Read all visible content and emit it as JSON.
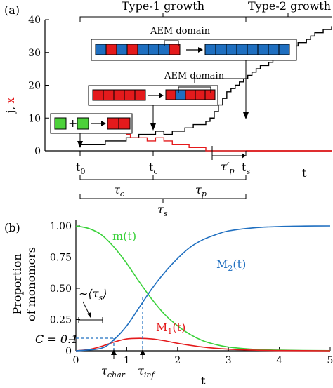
{
  "panel_a": {
    "panel_label": "(a)",
    "ylabel_j": "j,",
    "ylabel_x": "x",
    "type1_label": "Type-1 growth",
    "type2_label": "Type-2 growth",
    "aem_label_1": "AEM domain",
    "aem_label_2": "AEM domain",
    "xlabel": "t",
    "tick_t0": "t",
    "tick_t0_sub": "0",
    "tick_tc": "t",
    "tick_tc_sub": "c",
    "tick_ts": "t",
    "tick_ts_sub": "s",
    "tau_p_prime": "τ′",
    "tau_p_prime_sub": "p",
    "tau_c": "τ",
    "tau_c_sub": "c",
    "tau_p": "τ",
    "tau_p_sub": "p",
    "tau_s": "τ",
    "tau_s_sub": "s",
    "colors": {
      "j": "#000000",
      "x": "#e41a1c",
      "blue_monomer": "#1f6fc0",
      "red_monomer": "#e41a1c",
      "green_monomer": "#4cd13a"
    }
  },
  "panel_b": {
    "panel_label": "(b)",
    "ylabel_line1": "Proportion",
    "ylabel_line2": "of monomers",
    "xlabel": "t",
    "label_m": "m(t)",
    "label_M2": "M",
    "label_M2_sub": "2",
    "label_M2_arg": "(t)",
    "label_M1": "M",
    "label_M1_sub": "1",
    "label_M1_arg": "(t)",
    "c_label": "C = 0.1",
    "ts_label": "∼⟨τ",
    "ts_label_sub": "s",
    "ts_label_end": "⟩",
    "tchar": "τ",
    "tchar_sub": "char",
    "tinf": "τ",
    "tinf_sub": "inf",
    "colors": {
      "m": "#3ad13a",
      "M1": "#e41a1c",
      "M2": "#1f6fc0",
      "guide": "#1f6fc0"
    }
  },
  "chart_data": [
    {
      "type": "line",
      "panel": "a",
      "xlabel": "t",
      "ylabel": "j, x",
      "ylim": [
        0,
        40
      ],
      "yticks": [
        0,
        10,
        20,
        30,
        40
      ],
      "x_markers": [
        "t0",
        "tc",
        "ts"
      ],
      "series": [
        {
          "name": "j",
          "color": "#000000",
          "x": [
            0.0,
            0.1,
            0.2,
            0.3,
            0.4,
            0.5,
            0.55,
            0.6,
            0.7,
            0.8,
            0.9,
            1.0,
            1.1,
            1.2,
            1.25,
            1.3,
            1.35,
            1.4,
            1.45,
            1.5,
            1.55,
            1.6,
            1.65,
            1.7,
            1.75,
            1.8,
            1.85,
            1.9,
            1.95,
            2.0,
            2.05,
            2.1,
            2.15,
            2.2,
            2.25,
            2.3,
            2.35,
            2.4,
            2.45,
            2.5,
            2.55,
            2.6,
            2.65,
            2.7,
            2.75,
            2.8,
            2.85,
            2.9,
            2.95,
            3.0
          ],
          "values": [
            2,
            2,
            2,
            3,
            3,
            3,
            4,
            4,
            5,
            5,
            6,
            5,
            6,
            6,
            7,
            7,
            8,
            8,
            8,
            9,
            10,
            12,
            14,
            16,
            18,
            19,
            20,
            21,
            22,
            23,
            24,
            25,
            26,
            26,
            27,
            28,
            29,
            30,
            30,
            31,
            32,
            33,
            33,
            34,
            35,
            36,
            36,
            37,
            37,
            38
          ]
        },
        {
          "name": "x",
          "color": "#e41a1c",
          "x": [
            0.55,
            0.6,
            0.7,
            0.8,
            0.9,
            1.0,
            1.1,
            1.2,
            1.3,
            1.4,
            1.5,
            3.0
          ],
          "values": [
            5,
            4,
            4,
            3,
            4,
            3,
            2,
            2,
            1,
            1,
            0,
            0
          ]
        }
      ]
    },
    {
      "type": "line",
      "panel": "b",
      "xlabel": "t",
      "ylabel": "Proportion of monomers",
      "xlim": [
        0,
        5
      ],
      "ylim": [
        0,
        1
      ],
      "xticks": [
        0,
        1,
        2,
        3,
        4,
        5
      ],
      "yticks": [
        0,
        0.25,
        0.5,
        0.75,
        1.0
      ],
      "ytick_labels": [
        "0",
        "0.25",
        "0.50",
        "0.75",
        "1.00"
      ],
      "series": [
        {
          "name": "m(t)",
          "color": "#3ad13a",
          "x": [
            0,
            0.25,
            0.5,
            0.75,
            1.0,
            1.25,
            1.5,
            1.75,
            2.0,
            2.25,
            2.5,
            2.75,
            3.0,
            3.5,
            4.0,
            5.0
          ],
          "values": [
            1.0,
            0.98,
            0.93,
            0.83,
            0.7,
            0.55,
            0.41,
            0.29,
            0.2,
            0.13,
            0.08,
            0.05,
            0.03,
            0.012,
            0.005,
            0.001
          ]
        },
        {
          "name": "M1(t)",
          "color": "#e41a1c",
          "x": [
            0,
            0.25,
            0.5,
            0.75,
            1.0,
            1.25,
            1.5,
            1.75,
            2.0,
            2.5,
            3.0,
            3.5,
            4.0,
            5.0
          ],
          "values": [
            0,
            0.01,
            0.035,
            0.07,
            0.095,
            0.1,
            0.095,
            0.08,
            0.06,
            0.03,
            0.013,
            0.005,
            0.002,
            0.0
          ]
        },
        {
          "name": "M2(t)",
          "color": "#1f6fc0",
          "x": [
            0,
            0.5,
            0.75,
            1.0,
            1.25,
            1.5,
            1.75,
            2.0,
            2.25,
            2.5,
            2.75,
            3.0,
            3.5,
            4.0,
            4.5,
            5.0
          ],
          "values": [
            0,
            0.02,
            0.09,
            0.2,
            0.35,
            0.5,
            0.63,
            0.74,
            0.83,
            0.89,
            0.93,
            0.96,
            0.985,
            0.995,
            0.999,
            1.0
          ]
        }
      ],
      "annotations": [
        {
          "label": "C = 0.1",
          "y": 0.1
        },
        {
          "label": "τchar",
          "x": 0.75
        },
        {
          "label": "τinf",
          "x": 1.3
        }
      ]
    }
  ]
}
